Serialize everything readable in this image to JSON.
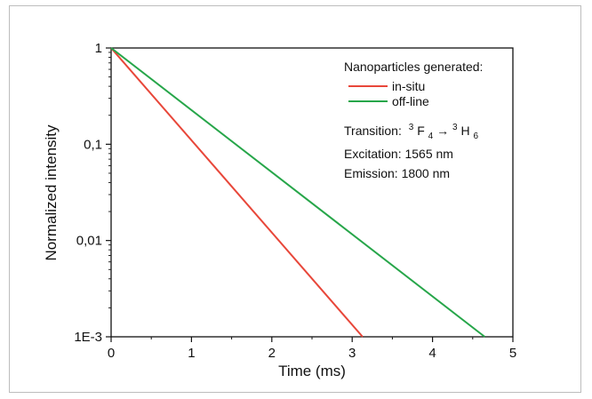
{
  "chart_data": {
    "type": "line",
    "xlabel": "Time (ms)",
    "ylabel": "Normalized intensity",
    "xlim": [
      0,
      5
    ],
    "ylim": [
      0.001,
      1
    ],
    "yscale": "log",
    "xticks": [
      {
        "value": 0,
        "label": "0"
      },
      {
        "value": 1,
        "label": "1"
      },
      {
        "value": 2,
        "label": "2"
      },
      {
        "value": 3,
        "label": "3"
      },
      {
        "value": 4,
        "label": "4"
      },
      {
        "value": 5,
        "label": "5"
      }
    ],
    "yticks": [
      {
        "value": 1,
        "label": "1"
      },
      {
        "value": 0.1,
        "label": "0,1"
      },
      {
        "value": 0.01,
        "label": "0,01"
      },
      {
        "value": 0.001,
        "label": "1E-3"
      }
    ],
    "legend_title": "Nanoparticles generated:",
    "legend_position": "top-right",
    "series": [
      {
        "name": "in-situ",
        "color": "#e8473a",
        "x": [
          0,
          3.13
        ],
        "y": [
          1,
          0.001
        ]
      },
      {
        "name": "off-line",
        "color": "#27a64a",
        "x": [
          0,
          4.65
        ],
        "y": [
          1,
          0.001
        ]
      }
    ],
    "annotations": {
      "transition_prefix": "Transition:",
      "transition_from_sup": "3",
      "transition_from_base": "F",
      "transition_from_sub": "4",
      "transition_arrow": "→",
      "transition_to_sup": "3",
      "transition_to_base": "H",
      "transition_to_sub": "6",
      "excitation": "Excitation: 1565 nm",
      "emission": "Emission: 1800 nm"
    }
  }
}
